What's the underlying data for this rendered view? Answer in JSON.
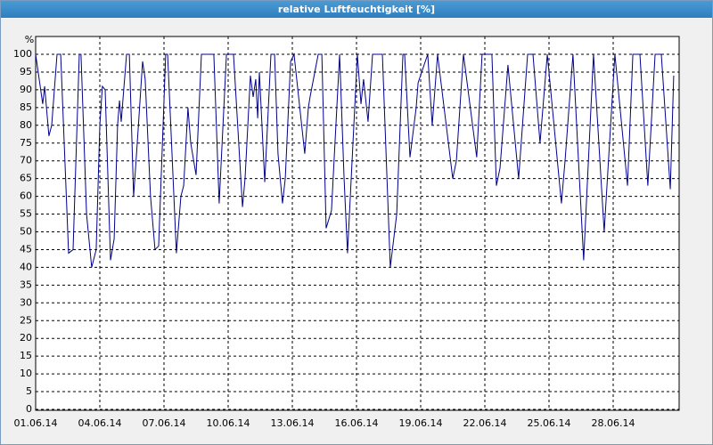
{
  "chart_data": {
    "type": "line",
    "title": "relative Luftfeuchtigkeit [%]",
    "y_label": "%",
    "x": [
      0,
      0.33,
      0.42,
      0.62,
      0.75,
      1.0,
      1.17,
      1.54,
      1.75,
      2.04,
      2.12,
      2.38,
      2.62,
      2.83,
      3.0,
      3.12,
      3.25,
      3.5,
      3.67,
      3.83,
      3.92,
      4.0,
      4.25,
      4.38,
      4.58,
      4.75,
      5.0,
      5.12,
      5.37,
      5.58,
      5.75,
      6.08,
      6.17,
      6.58,
      6.79,
      6.92,
      7.12,
      7.25,
      7.5,
      7.75,
      8.33,
      8.58,
      8.92,
      9.25,
      9.67,
      9.79,
      10.04,
      10.17,
      10.29,
      10.38,
      10.46,
      10.71,
      11.0,
      11.17,
      11.33,
      11.54,
      11.67,
      11.92,
      12.08,
      12.58,
      12.75,
      12.83,
      13.21,
      13.38,
      13.58,
      13.83,
      14.21,
      14.42,
      14.58,
      15.04,
      15.21,
      15.33,
      15.54,
      15.75,
      16.21,
      16.58,
      16.88,
      17.17,
      17.25,
      17.5,
      17.79,
      17.88,
      18.33,
      18.54,
      18.79,
      19.5,
      19.67,
      20.0,
      20.62,
      20.87,
      21.33,
      21.54,
      21.71,
      22.08,
      22.58,
      23.0,
      23.25,
      23.58,
      23.92,
      24.58,
      24.75,
      25.12,
      25.62,
      26.08,
      26.58,
      26.83,
      27.08,
      27.67,
      27.92,
      28.25,
      28.62,
      28.96,
      29.25,
      29.67,
      29.83
    ],
    "values": [
      100,
      86,
      91,
      77,
      80,
      100,
      100,
      44,
      45,
      100,
      100,
      55,
      40,
      45,
      80,
      91,
      90,
      42,
      48,
      80,
      87,
      81,
      100,
      100,
      60,
      75,
      98,
      93,
      60,
      45,
      46,
      100,
      100,
      44,
      60,
      63,
      85,
      75,
      66,
      100,
      100,
      58,
      100,
      100,
      57,
      65,
      94,
      88,
      93,
      82,
      95,
      64,
      100,
      100,
      72,
      58,
      65,
      98,
      100,
      72,
      85,
      88,
      100,
      100,
      51,
      56,
      100,
      65,
      44,
      100,
      86,
      93,
      81,
      100,
      100,
      40,
      55,
      100,
      100,
      71,
      85,
      92,
      100,
      80,
      100,
      65,
      70,
      100,
      71,
      100,
      100,
      63,
      68,
      97,
      65,
      100,
      100,
      75,
      100,
      58,
      70,
      100,
      42,
      100,
      50,
      75,
      100,
      63,
      100,
      100,
      63,
      100,
      100,
      62,
      94
    ],
    "color": "#00008b",
    "xlim": [
      0,
      30
    ],
    "xticks": [
      {
        "value": 0,
        "label": "01.06.14"
      },
      {
        "value": 3,
        "label": "04.06.14"
      },
      {
        "value": 6,
        "label": "07.06.14"
      },
      {
        "value": 9,
        "label": "10.06.14"
      },
      {
        "value": 12,
        "label": "13.06.14"
      },
      {
        "value": 15,
        "label": "16.06.14"
      },
      {
        "value": 18,
        "label": "19.06.14"
      },
      {
        "value": 21,
        "label": "22.06.14"
      },
      {
        "value": 24,
        "label": "25.06.14"
      },
      {
        "value": 27,
        "label": "28.06.14"
      }
    ],
    "ylim": [
      0,
      100
    ],
    "yticks": [
      0,
      5,
      10,
      15,
      20,
      25,
      30,
      35,
      40,
      45,
      50,
      55,
      60,
      65,
      70,
      75,
      80,
      85,
      90,
      95,
      100
    ],
    "grid": true
  }
}
